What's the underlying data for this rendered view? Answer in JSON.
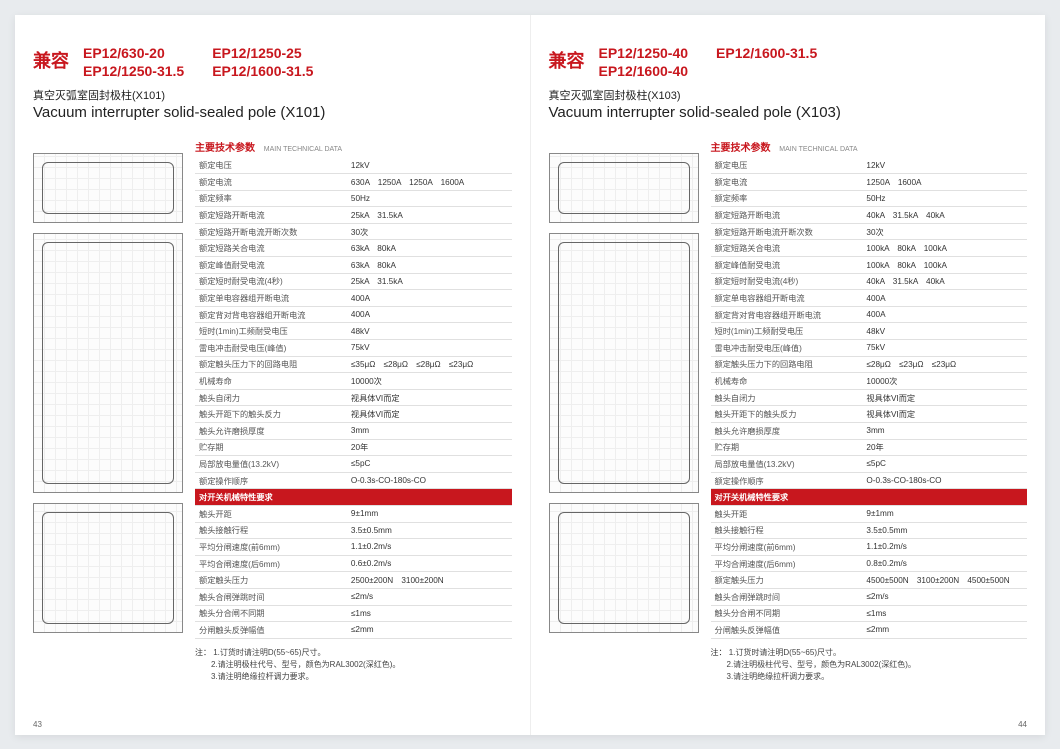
{
  "colors": {
    "accent": "#c8171e",
    "text": "#333333",
    "border": "#e0e0e0",
    "bg": "#ffffff"
  },
  "left": {
    "compat_label": "兼容",
    "models": [
      "EP12/630-20",
      "EP12/1250-25",
      "EP12/1250-31.5",
      "EP12/1600-31.5"
    ],
    "title_cn": "真空灭弧室固封极柱(X101)",
    "title_en": "Vacuum interrupter solid-sealed pole (X101)",
    "spec_title_cn": "主要技术参数",
    "spec_title_en": "MAIN TECHNICAL DATA",
    "rows": [
      [
        "额定电压",
        "12kV"
      ],
      [
        "额定电流",
        "630A　1250A　1250A　1600A"
      ],
      [
        "额定频率",
        "50Hz"
      ],
      [
        "额定短路开断电流",
        "25kA　31.5kA"
      ],
      [
        "额定短路开断电流开断次数",
        "30次"
      ],
      [
        "额定短路关合电流",
        "63kA　80kA"
      ],
      [
        "额定峰值耐受电流",
        "63kA　80kA"
      ],
      [
        "额定短时耐受电流(4秒)",
        "25kA　31.5kA"
      ],
      [
        "额定单电容器组开断电流",
        "400A"
      ],
      [
        "额定背对背电容器组开断电流",
        "400A"
      ],
      [
        "短时(1min)工频耐受电压",
        "48kV"
      ],
      [
        "雷电冲击耐受电压(峰值)",
        "75kV"
      ],
      [
        "额定触头压力下的回路电阻",
        "≤35μΩ　≤28μΩ　≤28μΩ　≤23μΩ"
      ],
      [
        "机械寿命",
        "10000次"
      ],
      [
        "触头自闭力",
        "视具体VI而定"
      ],
      [
        "触头开距下的触头反力",
        "视具体VI而定"
      ],
      [
        "触头允许磨损厚度",
        "3mm"
      ],
      [
        "贮存期",
        "20年"
      ],
      [
        "局部放电量值(13.2kV)",
        "≤5pC"
      ],
      [
        "额定操作顺序",
        "O-0.3s-CO-180s-CO"
      ]
    ],
    "band": "对开关机械特性要求",
    "rows2": [
      [
        "触头开距",
        "9±1mm"
      ],
      [
        "触头接触行程",
        "3.5±0.5mm"
      ],
      [
        "平均分闸速度(前6mm)",
        "1.1±0.2m/s"
      ],
      [
        "平均合闸速度(后6mm)",
        "0.6±0.2m/s"
      ],
      [
        "额定触头压力",
        "2500±200N　3100±200N"
      ],
      [
        "触头合闸弹跳时间",
        "≤2m/s"
      ],
      [
        "触头分合闸不同期",
        "≤1ms"
      ],
      [
        "分闸触头反弹幅值",
        "≤2mm"
      ]
    ],
    "notes_label": "注：",
    "notes": [
      "1.订货时请注明D(55~65)尺寸。",
      "2.请注明极柱代号、型号，颜色为RAL3002(深红色)。",
      "3.请注明绝缘拉杆调力要求。"
    ],
    "pgnum": "43"
  },
  "right": {
    "compat_label": "兼容",
    "models": [
      "EP12/1250-40",
      "EP12/1600-31.5",
      "EP12/1600-40",
      ""
    ],
    "title_cn": "真空灭弧室固封极柱(X103)",
    "title_en": "Vacuum interrupter solid-sealed pole (X103)",
    "spec_title_cn": "主要技术参数",
    "spec_title_en": "MAIN TECHNICAL DATA",
    "rows": [
      [
        "额定电压",
        "12kV"
      ],
      [
        "额定电流",
        "1250A　1600A"
      ],
      [
        "额定频率",
        "50Hz"
      ],
      [
        "额定短路开断电流",
        "40kA　31.5kA　40kA"
      ],
      [
        "额定短路开断电流开断次数",
        "30次"
      ],
      [
        "额定短路关合电流",
        "100kA　80kA　100kA"
      ],
      [
        "额定峰值耐受电流",
        "100kA　80kA　100kA"
      ],
      [
        "额定短时耐受电流(4秒)",
        "40kA　31.5kA　40kA"
      ],
      [
        "额定单电容器组开断电流",
        "400A"
      ],
      [
        "额定背对背电容器组开断电流",
        "400A"
      ],
      [
        "短时(1min)工频耐受电压",
        "48kV"
      ],
      [
        "雷电冲击耐受电压(峰值)",
        "75kV"
      ],
      [
        "额定触头压力下的回路电阻",
        "≤28μΩ　≤23μΩ　≤23μΩ"
      ],
      [
        "机械寿命",
        "10000次"
      ],
      [
        "触头自闭力",
        "视具体VI而定"
      ],
      [
        "触头开距下的触头反力",
        "视具体VI而定"
      ],
      [
        "触头允许磨损厚度",
        "3mm"
      ],
      [
        "贮存期",
        "20年"
      ],
      [
        "局部放电量值(13.2kV)",
        "≤5pC"
      ],
      [
        "额定操作顺序",
        "O-0.3s-CO-180s-CO"
      ]
    ],
    "band": "对开关机械特性要求",
    "rows2": [
      [
        "触头开距",
        "9±1mm"
      ],
      [
        "触头接触行程",
        "3.5±0.5mm"
      ],
      [
        "平均分闸速度(前6mm)",
        "1.1±0.2m/s"
      ],
      [
        "平均合闸速度(后6mm)",
        "0.8±0.2m/s"
      ],
      [
        "额定触头压力",
        "4500±500N　3100±200N　4500±500N"
      ],
      [
        "触头合闸弹跳时间",
        "≤2m/s"
      ],
      [
        "触头分合闸不同期",
        "≤1ms"
      ],
      [
        "分闸触头反弹幅值",
        "≤2mm"
      ]
    ],
    "notes_label": "注：",
    "notes": [
      "1.订货时请注明D(55~65)尺寸。",
      "2.请注明极柱代号、型号，颜色为RAL3002(深红色)。",
      "3.请注明绝缘拉杆调力要求。"
    ],
    "pgnum": "44"
  }
}
